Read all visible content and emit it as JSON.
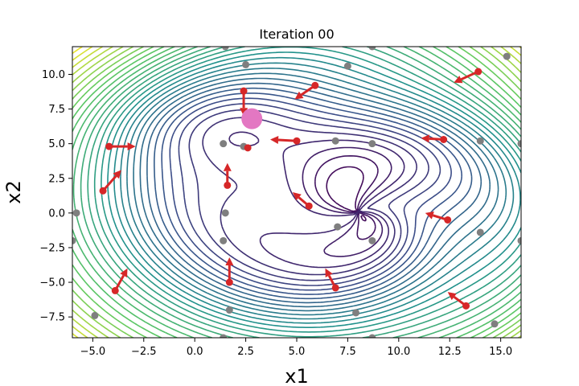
{
  "chart_data": {
    "type": "contour",
    "title": "Iteration 00",
    "xlabel": "x1",
    "ylabel": "x2",
    "xlim": [
      -6,
      16
    ],
    "ylim": [
      -9,
      12
    ],
    "xticks": [
      -5.0,
      -2.5,
      0.0,
      2.5,
      5.0,
      7.5,
      10.0,
      12.5,
      15.0
    ],
    "yticks": [
      -7.5,
      -5.0,
      -2.5,
      0.0,
      2.5,
      5.0,
      7.5,
      10.0
    ],
    "xtick_labels": [
      "−5.0",
      "−2.5",
      "0.0",
      "2.5",
      "5.0",
      "7.5",
      "10.0",
      "12.5",
      "15.0"
    ],
    "ytick_labels": [
      "−7.5",
      "−5.0",
      "−2.5",
      "0.0",
      "2.5",
      "5.0",
      "7.5",
      "10.0"
    ],
    "contour_centers": {
      "minimum": [
        8.0,
        0.0
      ],
      "maximum": [
        2.0,
        6.5
      ]
    },
    "contour_colormap": "viridis",
    "highlight_point": {
      "x": 2.8,
      "y": 6.8,
      "color": "#e377c2"
    },
    "gray_points": {
      "color": "#7f7f7f",
      "points": [
        [
          1.5,
          12.0
        ],
        [
          8.7,
          12.0
        ],
        [
          2.5,
          10.7
        ],
        [
          7.5,
          10.6
        ],
        [
          15.3,
          11.3
        ],
        [
          1.4,
          5.0
        ],
        [
          2.4,
          4.8
        ],
        [
          6.9,
          5.2
        ],
        [
          8.7,
          5.0
        ],
        [
          14.0,
          5.2
        ],
        [
          16.0,
          5.0
        ],
        [
          -5.8,
          0.0
        ],
        [
          1.5,
          0.0
        ],
        [
          7.0,
          -1.0
        ],
        [
          8.7,
          -2.0
        ],
        [
          14.0,
          -1.4
        ],
        [
          -6.0,
          -2.0
        ],
        [
          1.4,
          -2.0
        ],
        [
          16.0,
          -2.0
        ],
        [
          1.7,
          -7.0
        ],
        [
          7.9,
          -7.2
        ],
        [
          -4.9,
          -7.4
        ],
        [
          14.7,
          -8.0
        ],
        [
          1.4,
          -9.0
        ],
        [
          8.7,
          -9.0
        ]
      ]
    },
    "particles": {
      "color": "#d62728",
      "points": [
        {
          "x": 2.4,
          "y": 8.8,
          "dx": 0.0,
          "dy": -1.8
        },
        {
          "x": 5.9,
          "y": 9.2,
          "dx": -1.0,
          "dy": -1.0
        },
        {
          "x": 13.9,
          "y": 10.2,
          "dx": -1.2,
          "dy": -0.8
        },
        {
          "x": -4.2,
          "y": 4.8,
          "dx": 1.3,
          "dy": 0.0
        },
        {
          "x": 2.6,
          "y": 4.7,
          "dx": 0.0,
          "dy": 0.0
        },
        {
          "x": 5.0,
          "y": 5.2,
          "dx": -1.3,
          "dy": 0.1
        },
        {
          "x": 12.2,
          "y": 5.3,
          "dx": -1.1,
          "dy": 0.1
        },
        {
          "x": -4.5,
          "y": 1.6,
          "dx": 0.9,
          "dy": 1.5
        },
        {
          "x": 1.6,
          "y": 2.0,
          "dx": 0.0,
          "dy": 1.6
        },
        {
          "x": 5.6,
          "y": 0.5,
          "dx": -0.8,
          "dy": 1.0
        },
        {
          "x": 12.4,
          "y": -0.5,
          "dx": -1.1,
          "dy": 0.5
        },
        {
          "x": -3.9,
          "y": -5.6,
          "dx": 0.6,
          "dy": 1.6
        },
        {
          "x": 1.7,
          "y": -5.0,
          "dx": 0.0,
          "dy": 1.8
        },
        {
          "x": 6.9,
          "y": -5.4,
          "dx": -0.5,
          "dy": 1.4
        },
        {
          "x": 13.3,
          "y": -6.7,
          "dx": -0.9,
          "dy": 1.0
        }
      ]
    }
  }
}
